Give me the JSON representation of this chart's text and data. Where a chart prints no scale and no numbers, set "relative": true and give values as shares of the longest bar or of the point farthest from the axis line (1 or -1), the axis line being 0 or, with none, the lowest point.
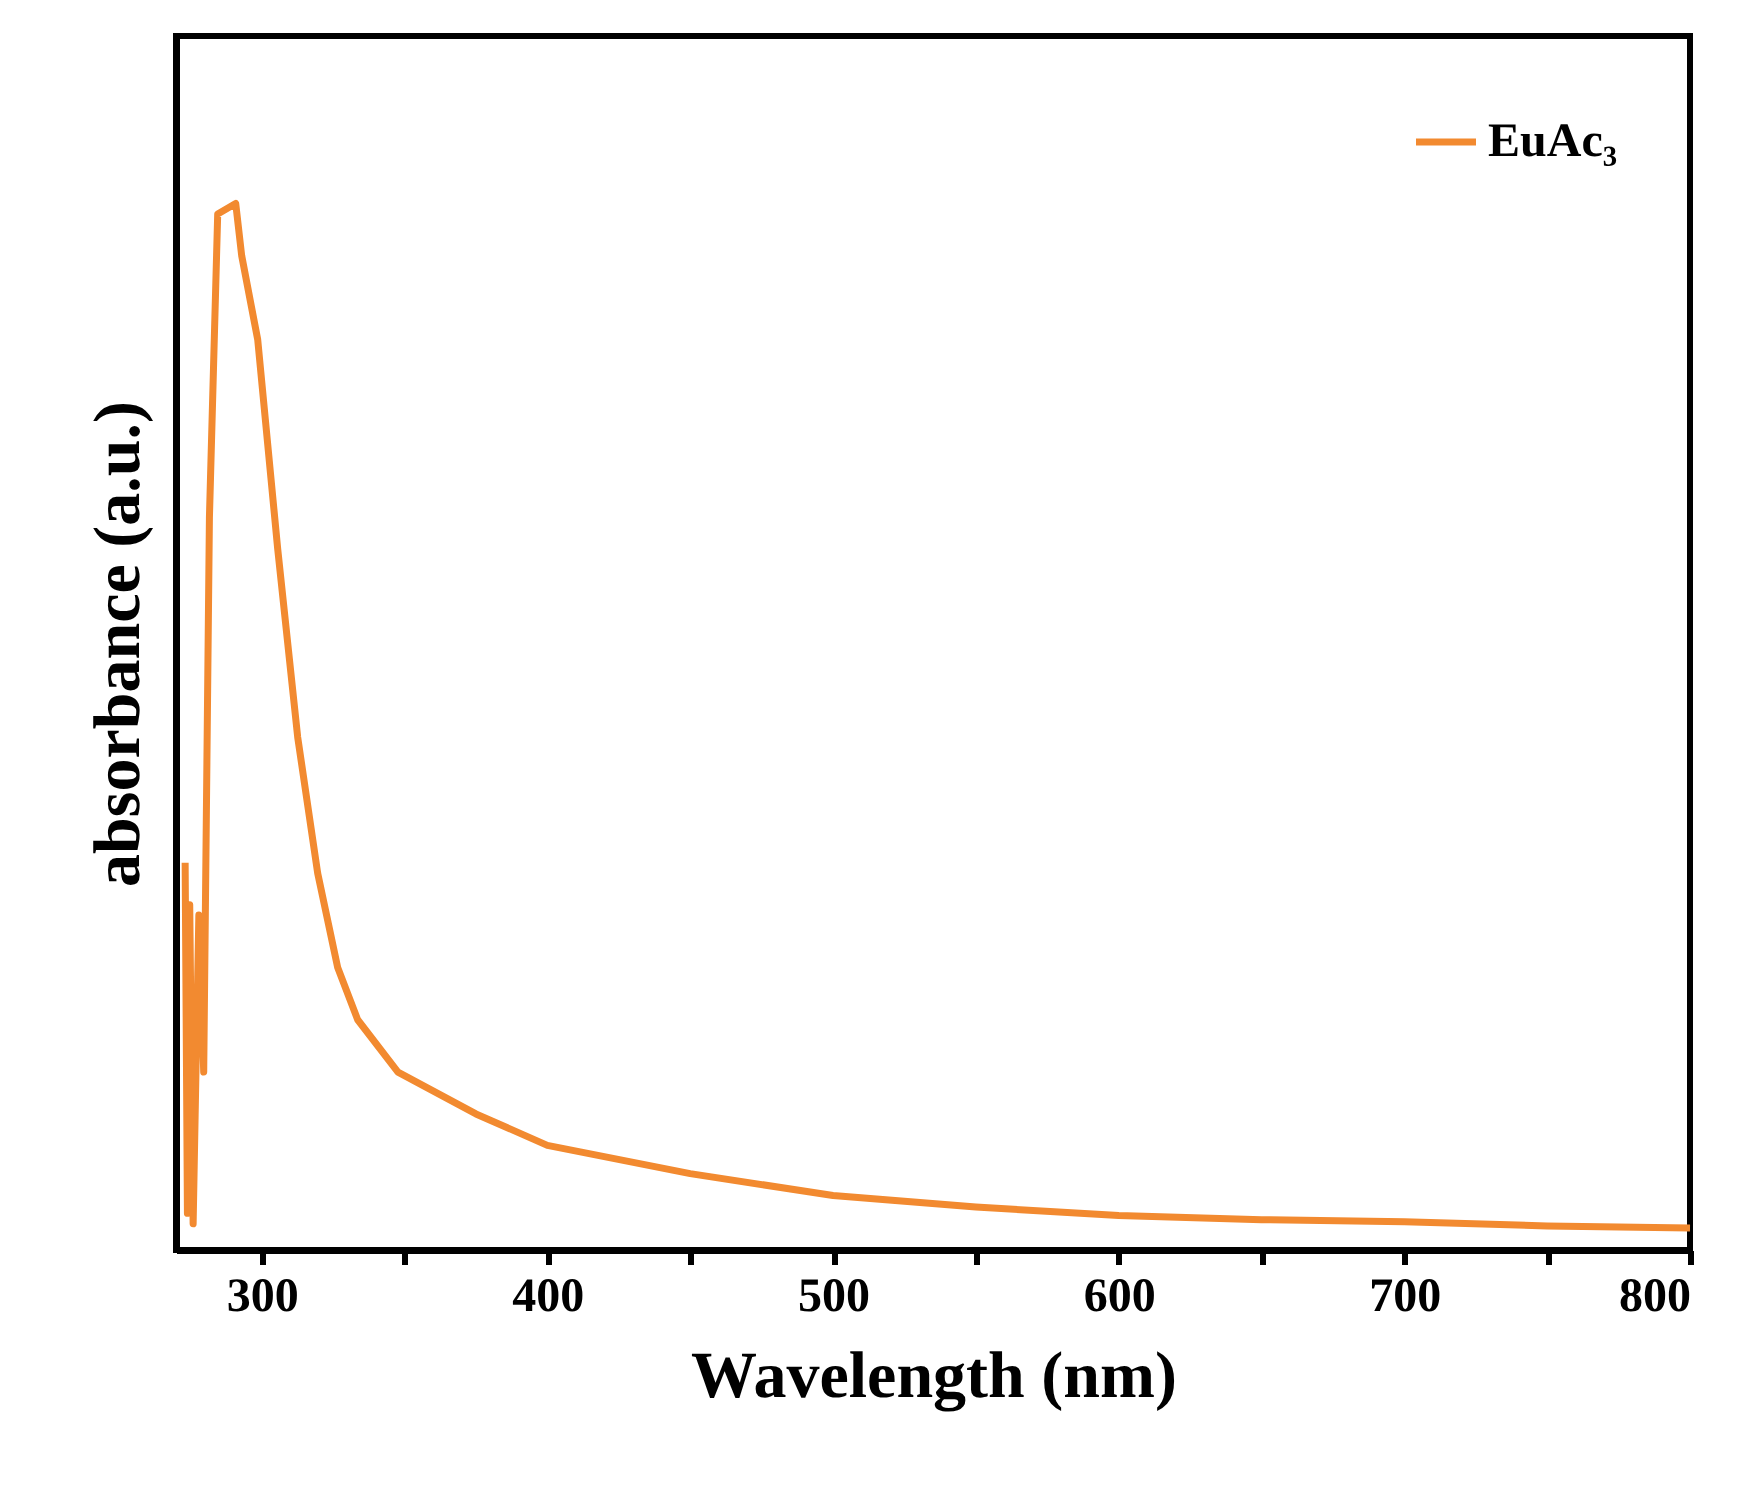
{
  "chart_data": {
    "type": "line",
    "xlabel": "Wavelength (nm)",
    "ylabel": "absorbance (a.u.)",
    "relative": true,
    "legend": "top right",
    "marker": "none",
    "line_style": "solid",
    "grid": false,
    "xlim": [
      270,
      800
    ],
    "xticks": [
      300,
      {
        "value": 350,
        "label": null
      },
      400,
      {
        "value": 450,
        "label": null
      },
      500,
      {
        "value": 550,
        "label": null
      },
      600,
      {
        "value": 650,
        "label": null
      },
      700,
      {
        "value": 750,
        "label": null
      },
      800
    ],
    "x": [
      273.2,
      274,
      274.8,
      276,
      278,
      279.7,
      281.7,
      284.6,
      290.9,
      293,
      298.6,
      305.6,
      312.6,
      319.6,
      326.6,
      333.6,
      347.7,
      375,
      400,
      450,
      500,
      550,
      600,
      650,
      700,
      750,
      800
    ],
    "series": [
      {
        "name": "EuAc₃",
        "color": "#f28a30",
        "values": [
          0.37,
          0.035,
          0.33,
          0.025,
          0.32,
          0.17,
          0.7,
          0.99,
          1.0,
          0.95,
          0.87,
          0.67,
          0.49,
          0.36,
          0.27,
          0.22,
          0.17,
          0.13,
          0.1,
          0.073,
          0.052,
          0.041,
          0.033,
          0.029,
          0.027,
          0.023,
          0.021
        ]
      }
    ]
  }
}
